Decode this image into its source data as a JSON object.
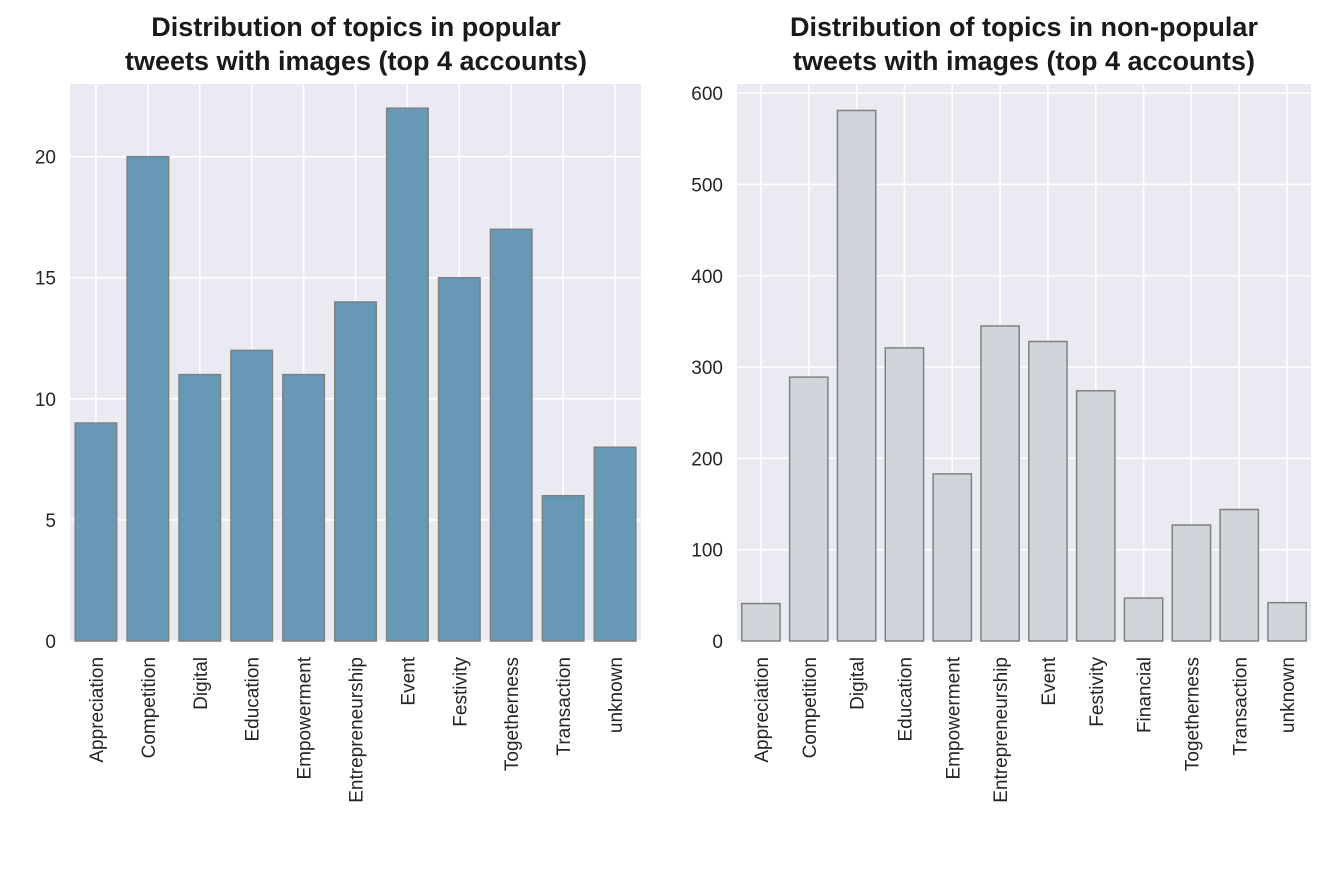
{
  "chart_data": [
    {
      "type": "bar",
      "title": "Distribution of topics in popular\ntweets with images (top 4 accounts)",
      "xlabel": "",
      "ylabel": "",
      "categories": [
        "Appreciation",
        "Competition",
        "Digital",
        "Education",
        "Empowerment",
        "Entrepreneurship",
        "Event",
        "Festivity",
        "Togetherness",
        "Transaction",
        "unknown"
      ],
      "values": [
        9,
        20,
        11,
        12,
        11,
        14,
        22,
        15,
        17,
        6,
        8
      ],
      "ylim": [
        0,
        23
      ],
      "yticks": [
        0,
        5,
        10,
        15,
        20
      ],
      "bar_color": "#6799b7",
      "grid": true
    },
    {
      "type": "bar",
      "title": "Distribution of topics in non-popular\ntweets with images (top 4 accounts)",
      "xlabel": "",
      "ylabel": "",
      "categories": [
        "Appreciation",
        "Competition",
        "Digital",
        "Education",
        "Empowerment",
        "Entrepreneurship",
        "Event",
        "Festivity",
        "Financial",
        "Togetherness",
        "Transaction",
        "unknown"
      ],
      "values": [
        41,
        289,
        581,
        321,
        183,
        345,
        328,
        274,
        47,
        127,
        144,
        42
      ],
      "ylim": [
        0,
        610
      ],
      "yticks": [
        0,
        100,
        200,
        300,
        400,
        500,
        600
      ],
      "bar_color": "#d0d5dc",
      "grid": true
    }
  ],
  "style": {
    "axes_background": "#eaeaf2",
    "grid_color": "#ffffff",
    "bar_edge_color": "#808080"
  }
}
